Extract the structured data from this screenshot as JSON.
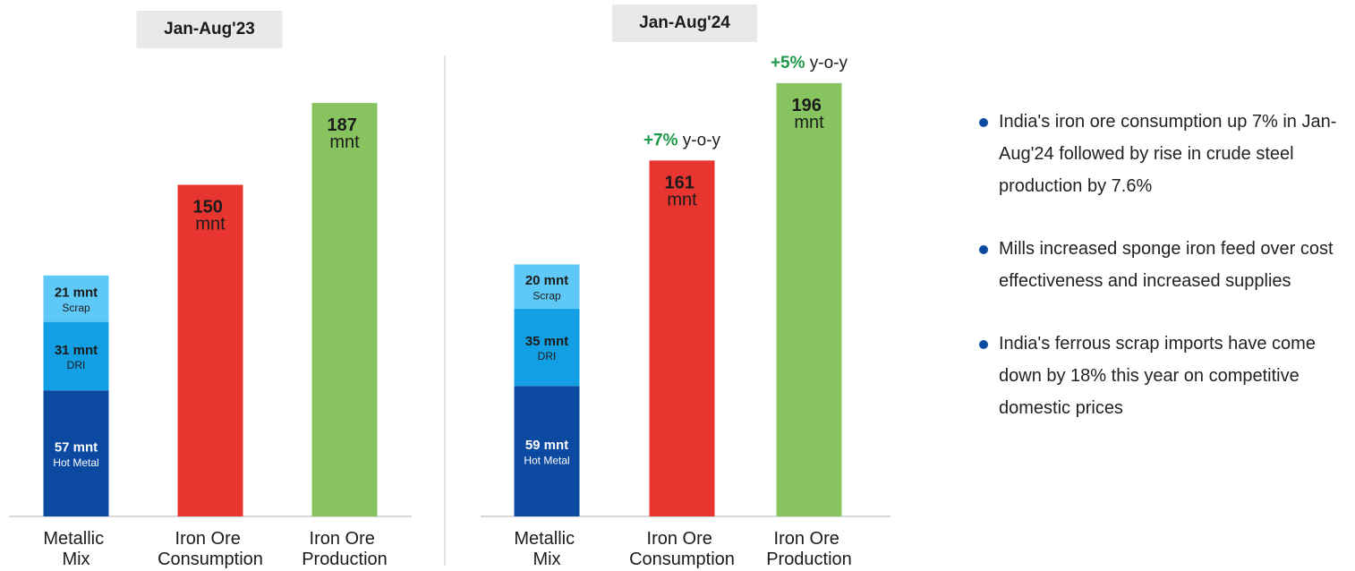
{
  "chart_data": [
    {
      "type": "bar",
      "title": "Jan-Aug'23",
      "categories": [
        "Metallic Mix",
        "Iron Ore Consumption",
        "Iron Ore Production"
      ],
      "ylim": [
        0,
        200
      ],
      "stacked": true,
      "series": [
        {
          "name": "Hot Metal",
          "color": "#0b4aa0",
          "label_color": "#ffffff",
          "values": [
            57,
            null,
            null
          ],
          "value_labels": [
            "57 mnt",
            null,
            null
          ]
        },
        {
          "name": "DRI",
          "color": "#139fe3",
          "label_color": "#1b1b1b",
          "values": [
            31,
            null,
            null
          ],
          "value_labels": [
            "31 mnt",
            null,
            null
          ]
        },
        {
          "name": "Scrap",
          "color": "#5ec8f6",
          "label_color": "#1b1b1b",
          "values": [
            21,
            null,
            null
          ],
          "value_labels": [
            "21 mnt",
            null,
            null
          ]
        },
        {
          "color": "#e8352f",
          "label_color": "#1b1b1b",
          "values": [
            null,
            150,
            null
          ],
          "value_labels": [
            null,
            "150 mnt",
            null
          ]
        },
        {
          "color": "#87c45f",
          "label_color": "#1b1b1b",
          "values": [
            null,
            null,
            187
          ],
          "value_labels": [
            null,
            null,
            "187 mnt"
          ]
        }
      ]
    },
    {
      "type": "bar",
      "title": "Jan-Aug'24",
      "categories": [
        "Metallic Mix",
        "Iron Ore Consumption",
        "Iron Ore Production"
      ],
      "ylim": [
        0,
        200
      ],
      "stacked": true,
      "series": [
        {
          "name": "Hot Metal",
          "color": "#0b4aa0",
          "label_color": "#ffffff",
          "values": [
            59,
            null,
            null
          ],
          "value_labels": [
            "59 mnt",
            null,
            null
          ]
        },
        {
          "name": "DRI",
          "color": "#139fe3",
          "label_color": "#1b1b1b",
          "values": [
            35,
            null,
            null
          ],
          "value_labels": [
            "35 mnt",
            null,
            null
          ]
        },
        {
          "name": "Scrap",
          "color": "#5ec8f6",
          "label_color": "#1b1b1b",
          "values": [
            20,
            null,
            null
          ],
          "value_labels": [
            "20 mnt",
            null,
            null
          ]
        },
        {
          "color": "#e8352f",
          "label_color": "#1b1b1b",
          "values": [
            null,
            161,
            null
          ],
          "value_labels": [
            null,
            "161 mnt",
            null
          ],
          "annotations": [
            null,
            "+7% y-o-y",
            null
          ]
        },
        {
          "color": "#87c45f",
          "label_color": "#1b1b1b",
          "values": [
            null,
            null,
            196
          ],
          "value_labels": [
            null,
            null,
            "196 mnt"
          ],
          "annotations": [
            null,
            null,
            "+5% y-o-y"
          ]
        }
      ]
    }
  ],
  "annotation_color": "#1f9a4a",
  "bullets": [
    "India's iron ore consumption up 7% in Jan-Aug'24 followed by rise in crude steel production by 7.6%",
    "Mills increased sponge iron feed over cost effectiveness and increased supplies",
    "India's ferrous scrap imports have come down by 18% this year on competitive domestic prices"
  ]
}
